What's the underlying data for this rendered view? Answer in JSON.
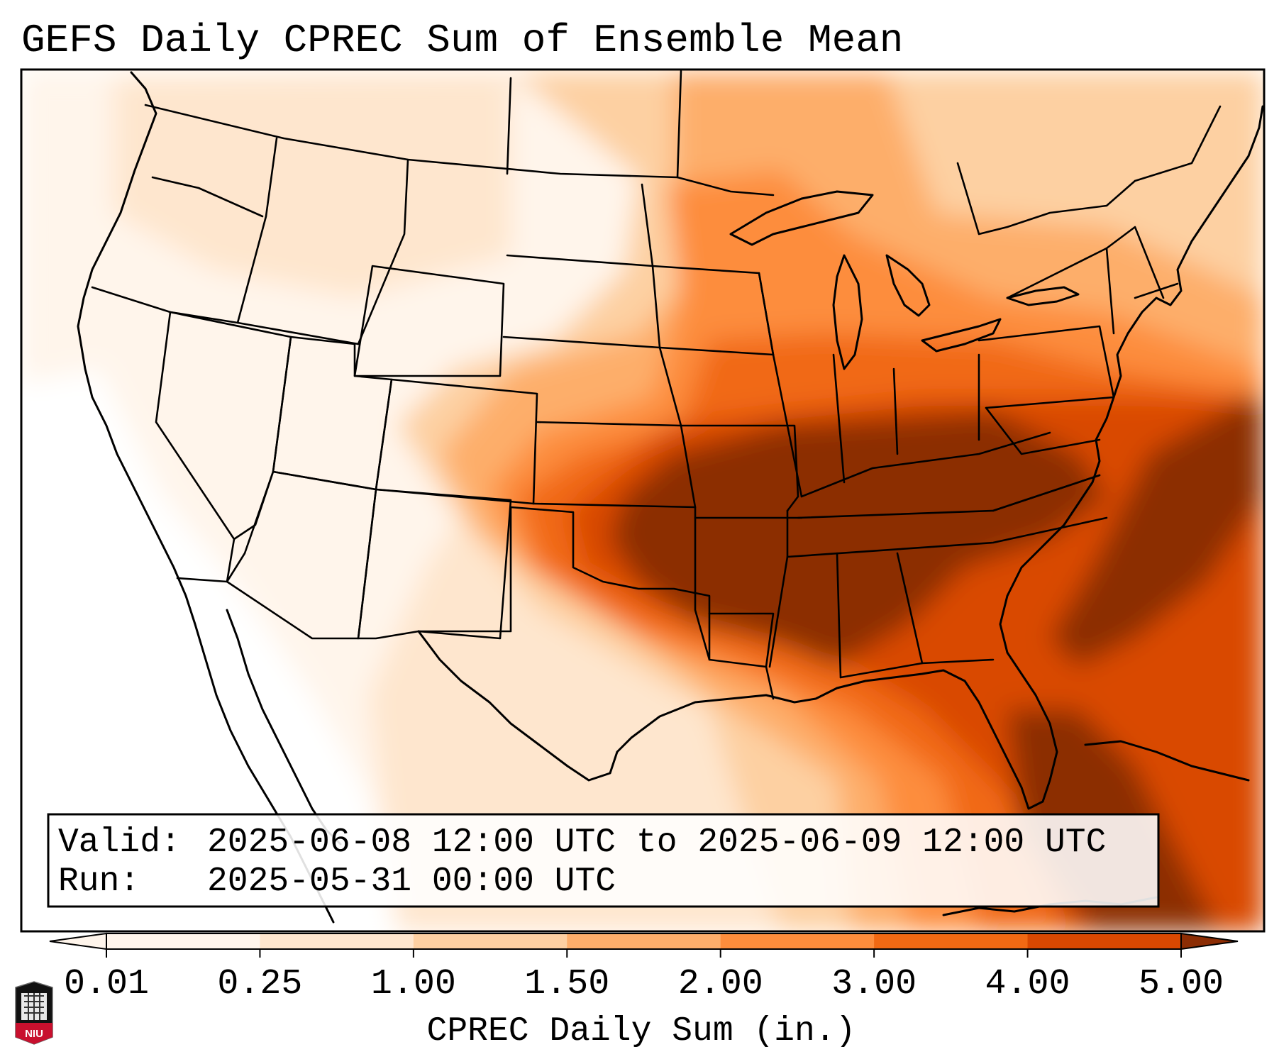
{
  "title": "GEFS Daily CPREC Sum of Ensemble Mean",
  "info_box": {
    "valid_label": "Valid:",
    "valid_range": "2025-06-08 12:00 UTC to 2025-06-09 12:00 UTC",
    "run_label": "Run:",
    "run_time": "2025-05-31 00:00 UTC"
  },
  "colorbar": {
    "label": "CPREC Daily Sum (in.)",
    "ticks": [
      "0.01",
      "0.25",
      "1.00",
      "1.50",
      "2.00",
      "3.00",
      "4.00",
      "5.00"
    ],
    "extend": "both",
    "colors": {
      "under": "#fff5eb",
      "bins": [
        "#fff5eb",
        "#fee6ce",
        "#fdd0a2",
        "#fdae6b",
        "#fd8d3c",
        "#f16913",
        "#d94801"
      ],
      "over": "#8c2d04"
    }
  },
  "logo": {
    "text": "NIU",
    "color": "#c8102e"
  },
  "map": {
    "region": "Contiguous United States",
    "highlight_areas": [
      "Mid-South",
      "Tennessee Valley",
      "Mid-Atlantic",
      "Florida",
      "Atlantic Ocean"
    ]
  }
}
